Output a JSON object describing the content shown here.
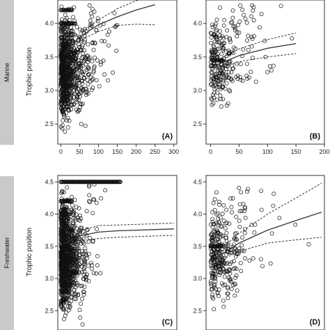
{
  "chart_data": [
    {
      "type": "scatter",
      "panel_label": "(A)",
      "row_label": "Marine",
      "ylabel": "Trophic position",
      "xlim": [
        -8,
        308
      ],
      "ylim": [
        2.2,
        4.35
      ],
      "x_ticks": [
        0,
        50,
        100,
        150,
        200,
        250,
        300
      ],
      "y_ticks": [
        2.5,
        3.0,
        3.5,
        4.0
      ],
      "cloud": {
        "x_max": 300,
        "y_min": 2.3,
        "y_max": 4.3,
        "n": 900,
        "seed": 11,
        "decay": 25
      },
      "bands": [
        {
          "y": 4.2,
          "x_from": 0,
          "x_to": 30
        },
        {
          "y": 4.0,
          "x_from": 0,
          "x_to": 40
        },
        {
          "y": 3.5,
          "x_from": 0,
          "x_to": 35
        }
      ],
      "fit": {
        "x": [
          10,
          50,
          100,
          150,
          200,
          250
        ],
        "y": [
          3.55,
          3.8,
          3.98,
          4.1,
          4.2,
          4.28
        ]
      },
      "ci_upper": {
        "x": [
          40,
          100,
          150,
          200,
          250
        ],
        "y": [
          3.82,
          4.05,
          4.22,
          4.34,
          4.4
        ]
      },
      "ci_lower": {
        "x": [
          40,
          100,
          150,
          200,
          250
        ],
        "y": [
          3.72,
          3.88,
          3.97,
          3.99,
          3.98
        ]
      }
    },
    {
      "type": "scatter",
      "panel_label": "(B)",
      "xlim": [
        -8,
        200
      ],
      "ylim": [
        2.2,
        4.35
      ],
      "x_ticks": [
        0,
        50,
        100,
        150,
        200
      ],
      "y_ticks": [
        2.5,
        3.0,
        3.5,
        4.0
      ],
      "cloud": {
        "x_max": 150,
        "y_min": 2.5,
        "y_max": 4.3,
        "n": 260,
        "seed": 23,
        "decay": 30
      },
      "bands": [
        {
          "y": 3.45,
          "x_from": 3,
          "x_to": 22
        }
      ],
      "fit": {
        "x": [
          10,
          50,
          100,
          150
        ],
        "y": [
          3.38,
          3.52,
          3.63,
          3.7
        ]
      },
      "ci_upper": {
        "x": [
          10,
          50,
          100,
          150
        ],
        "y": [
          3.45,
          3.62,
          3.76,
          3.86
        ]
      },
      "ci_lower": {
        "x": [
          10,
          50,
          100,
          150
        ],
        "y": [
          3.32,
          3.43,
          3.5,
          3.55
        ]
      }
    },
    {
      "type": "scatter",
      "panel_label": "(C)",
      "row_label": "Freshwater",
      "ylabel": "Trophic position",
      "xlim": [
        -8,
        308
      ],
      "ylim": [
        2.2,
        4.6
      ],
      "x_ticks": [],
      "y_ticks": [
        2.5,
        3.0,
        3.5,
        4.0,
        4.5
      ],
      "cloud": {
        "x_max": 300,
        "y_min": 2.2,
        "y_max": 4.5,
        "n": 1100,
        "seed": 37,
        "decay": 20
      },
      "bands": [
        {
          "y": 4.5,
          "x_from": 0,
          "x_to": 160
        },
        {
          "y": 4.2,
          "x_from": 0,
          "x_to": 30
        },
        {
          "y": 4.0,
          "x_from": 0,
          "x_to": 25
        }
      ],
      "fit": {
        "x": [
          10,
          50,
          100,
          150,
          200,
          250,
          300
        ],
        "y": [
          3.55,
          3.66,
          3.72,
          3.74,
          3.75,
          3.76,
          3.77
        ]
      },
      "ci_upper": {
        "x": [
          50,
          100,
          150,
          200,
          250,
          300
        ],
        "y": [
          3.74,
          3.82,
          3.83,
          3.84,
          3.85,
          3.86
        ]
      },
      "ci_lower": {
        "x": [
          50,
          100,
          150,
          200,
          250,
          300
        ],
        "y": [
          3.58,
          3.62,
          3.64,
          3.65,
          3.66,
          3.67
        ]
      }
    },
    {
      "type": "scatter",
      "panel_label": "(D)",
      "xlim": [
        -8,
        200
      ],
      "ylim": [
        2.2,
        4.6
      ],
      "x_ticks": [],
      "y_ticks": [
        2.5,
        3.0,
        3.5,
        4.0,
        4.5
      ],
      "cloud": {
        "x_max": 195,
        "y_min": 2.3,
        "y_max": 4.5,
        "n": 320,
        "seed": 53,
        "decay": 25
      },
      "bands": [
        {
          "y": 3.5,
          "x_from": 0,
          "x_to": 20
        }
      ],
      "fit": {
        "x": [
          10,
          50,
          100,
          150,
          195
        ],
        "y": [
          3.32,
          3.55,
          3.75,
          3.9,
          4.03
        ]
      },
      "ci_upper": {
        "x": [
          10,
          50,
          100,
          150,
          195
        ],
        "y": [
          3.4,
          3.7,
          4.0,
          4.25,
          4.48
        ]
      },
      "ci_lower": {
        "x": [
          10,
          50,
          100,
          150,
          195
        ],
        "y": [
          3.25,
          3.42,
          3.55,
          3.6,
          3.64
        ]
      }
    }
  ]
}
